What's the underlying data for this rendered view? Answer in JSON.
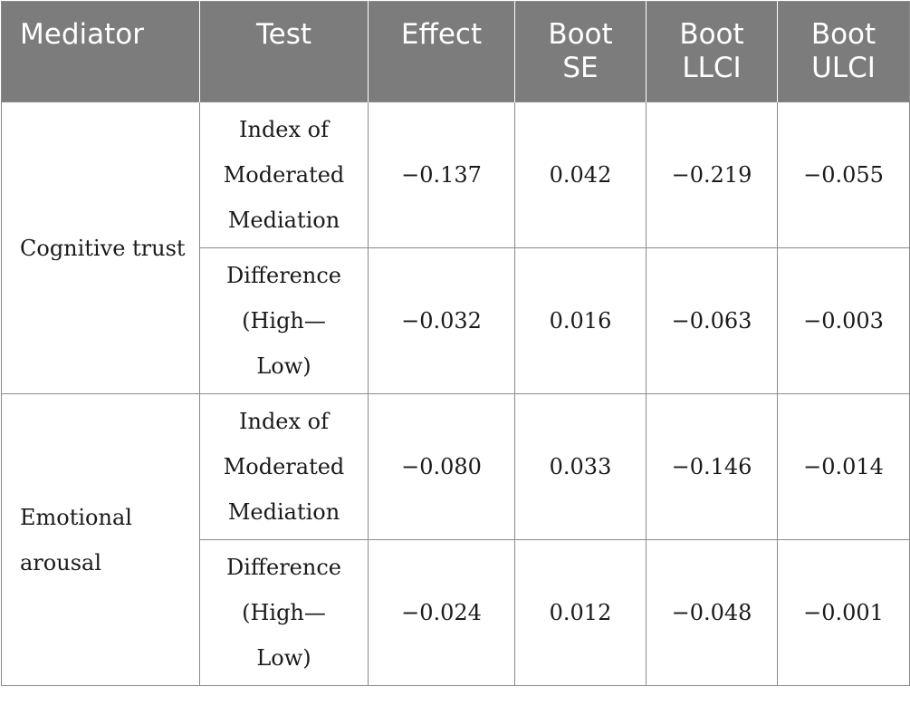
{
  "table": {
    "headers": [
      {
        "lines": [
          "Mediator"
        ]
      },
      {
        "lines": [
          "Test"
        ]
      },
      {
        "lines": [
          "Effect"
        ]
      },
      {
        "lines": [
          "Boot",
          "SE"
        ]
      },
      {
        "lines": [
          "Boot",
          "LLCI"
        ]
      },
      {
        "lines": [
          "Boot",
          "ULCI"
        ]
      }
    ],
    "groups": [
      {
        "mediator_lines": [
          "Cognitive trust"
        ],
        "rows": [
          {
            "test_lines": [
              "Index of",
              "Moderated",
              "Mediation"
            ],
            "effect": "−0.137",
            "boot_se": "0.042",
            "boot_llci": "−0.219",
            "boot_ulci": "−0.055"
          },
          {
            "test_lines": [
              "Difference",
              "(High—",
              "Low)"
            ],
            "effect": "−0.032",
            "boot_se": "0.016",
            "boot_llci": "−0.063",
            "boot_ulci": "−0.003"
          }
        ]
      },
      {
        "mediator_lines": [
          "Emotional",
          "arousal"
        ],
        "rows": [
          {
            "test_lines": [
              "Index of",
              "Moderated",
              "Mediation"
            ],
            "effect": "−0.080",
            "boot_se": "0.033",
            "boot_llci": "−0.146",
            "boot_ulci": "−0.014"
          },
          {
            "test_lines": [
              "Difference",
              "(High—",
              "Low)"
            ],
            "effect": "−0.024",
            "boot_se": "0.012",
            "boot_llci": "−0.048",
            "boot_ulci": "−0.001"
          }
        ]
      }
    ]
  }
}
